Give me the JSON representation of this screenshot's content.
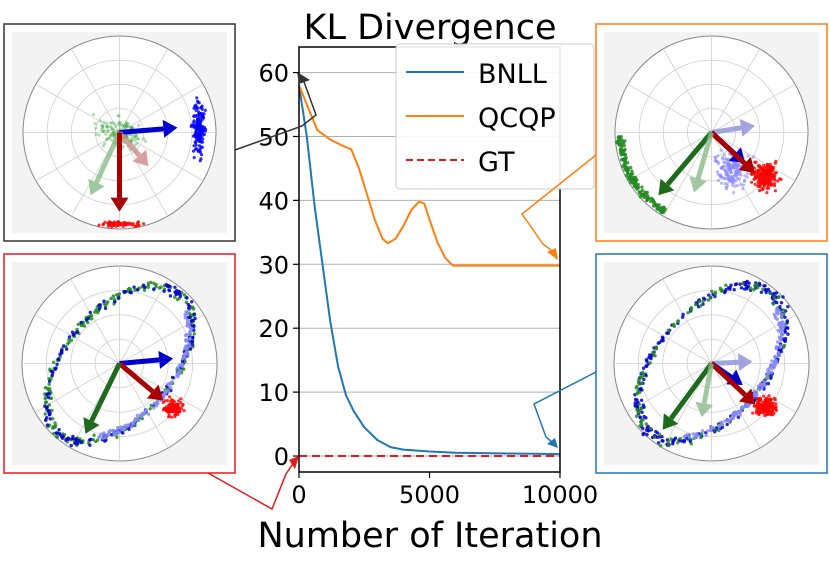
{
  "chart_data": {
    "type": "line",
    "title": "KL Divergence",
    "xlabel": "Number of Iteration",
    "ylabel": "",
    "xlim": [
      0,
      10000
    ],
    "ylim": [
      -2.5,
      64
    ],
    "x_ticks": [
      "0",
      "5000",
      "10000"
    ],
    "x_tick_values": [
      0,
      5000,
      10000
    ],
    "y_ticks": [
      "0",
      "10",
      "20",
      "30",
      "40",
      "50",
      "60"
    ],
    "y_tick_values": [
      0,
      10,
      20,
      30,
      40,
      50,
      60
    ],
    "grid": "horizontal",
    "legend_position": "top-right",
    "series": [
      {
        "name": "BNLL",
        "color": "#1f77b4",
        "style": "solid",
        "x": [
          0,
          300,
          600,
          900,
          1200,
          1500,
          1800,
          2100,
          2500,
          3000,
          3500,
          4000,
          5000,
          6000,
          7000,
          8000,
          9000,
          10000
        ],
        "y": [
          58,
          50,
          39,
          30,
          21,
          14,
          9.5,
          7,
          4.5,
          2.5,
          1.4,
          1.0,
          0.7,
          0.5,
          0.45,
          0.4,
          0.35,
          0.3
        ]
      },
      {
        "name": "QCQP",
        "color": "#ff7f0e",
        "style": "solid",
        "x": [
          0,
          300,
          700,
          1200,
          1700,
          2000,
          2300,
          2600,
          2900,
          3200,
          3400,
          3700,
          4000,
          4300,
          4600,
          4800,
          5000,
          5300,
          5600,
          5900,
          6200,
          7000,
          8000,
          9000,
          10000
        ],
        "y": [
          58,
          55,
          51,
          49.5,
          48.5,
          48,
          45,
          41,
          37,
          34,
          33.3,
          34,
          36,
          38.5,
          39.8,
          39.5,
          37,
          33.5,
          31,
          29.8,
          29.8,
          29.8,
          29.8,
          29.8,
          29.8
        ]
      },
      {
        "name": "GT",
        "color": "#e41a1c",
        "style": "dashed",
        "x": [
          0,
          10000
        ],
        "y": [
          0,
          0
        ]
      }
    ]
  },
  "colors": {
    "bnll": "#1f77b4",
    "qcqp": "#ff7f0e",
    "gt": "#e41a1c",
    "frame_black": "#333333",
    "frame_orange": "#ff7f0e",
    "frame_red": "#e41a1c",
    "frame_blue": "#1f77b4"
  }
}
